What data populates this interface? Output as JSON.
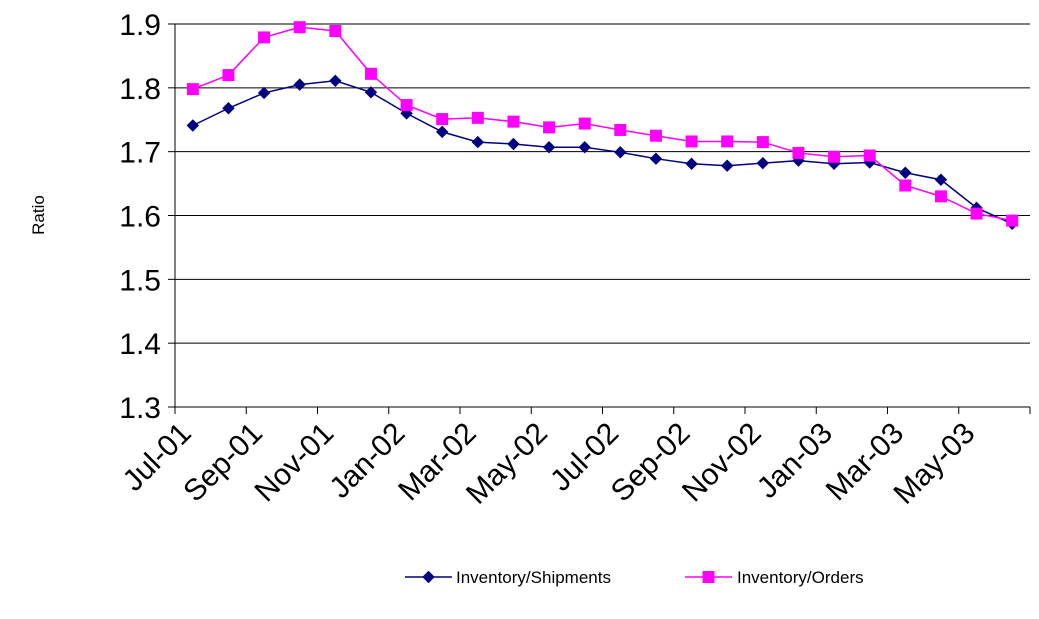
{
  "chart_data": {
    "type": "line",
    "xlabel": "",
    "ylabel": "Ratio",
    "ylim": [
      1.3,
      1.9
    ],
    "yticks": [
      "1.3",
      "1.4",
      "1.5",
      "1.6",
      "1.7",
      "1.8",
      "1.9"
    ],
    "grid": "horizontal",
    "legend_position": "bottom",
    "categories": [
      "Jul-01",
      "Aug-01",
      "Sep-01",
      "Oct-01",
      "Nov-01",
      "Dec-01",
      "Jan-02",
      "Feb-02",
      "Mar-02",
      "Apr-02",
      "May-02",
      "Jun-02",
      "Jul-02",
      "Aug-02",
      "Sep-02",
      "Oct-02",
      "Nov-02",
      "Dec-02",
      "Jan-03",
      "Feb-03",
      "Mar-03",
      "Apr-03",
      "May-03",
      "Jun-03"
    ],
    "xtick_labels": [
      "Jul-01",
      "Sep-01",
      "Nov-01",
      "Jan-02",
      "Mar-02",
      "May-02",
      "Jul-02",
      "Sep-02",
      "Nov-02",
      "Jan-03",
      "Mar-03",
      "May-03"
    ],
    "series": [
      {
        "name": "Inventory/Shipments",
        "color": "#000080",
        "marker": "diamond",
        "values": [
          1.741,
          1.768,
          1.792,
          1.805,
          1.811,
          1.793,
          1.76,
          1.731,
          1.715,
          1.712,
          1.707,
          1.707,
          1.699,
          1.689,
          1.681,
          1.678,
          1.682,
          1.686,
          1.681,
          1.683,
          1.667,
          1.656,
          1.612,
          1.587
        ]
      },
      {
        "name": "Inventory/Orders",
        "color": "#FF00FF",
        "marker": "square",
        "values": [
          1.798,
          1.82,
          1.879,
          1.895,
          1.889,
          1.822,
          1.773,
          1.751,
          1.753,
          1.747,
          1.738,
          1.744,
          1.734,
          1.725,
          1.716,
          1.716,
          1.715,
          1.698,
          1.692,
          1.694,
          1.647,
          1.63,
          1.603,
          1.592
        ]
      }
    ]
  }
}
